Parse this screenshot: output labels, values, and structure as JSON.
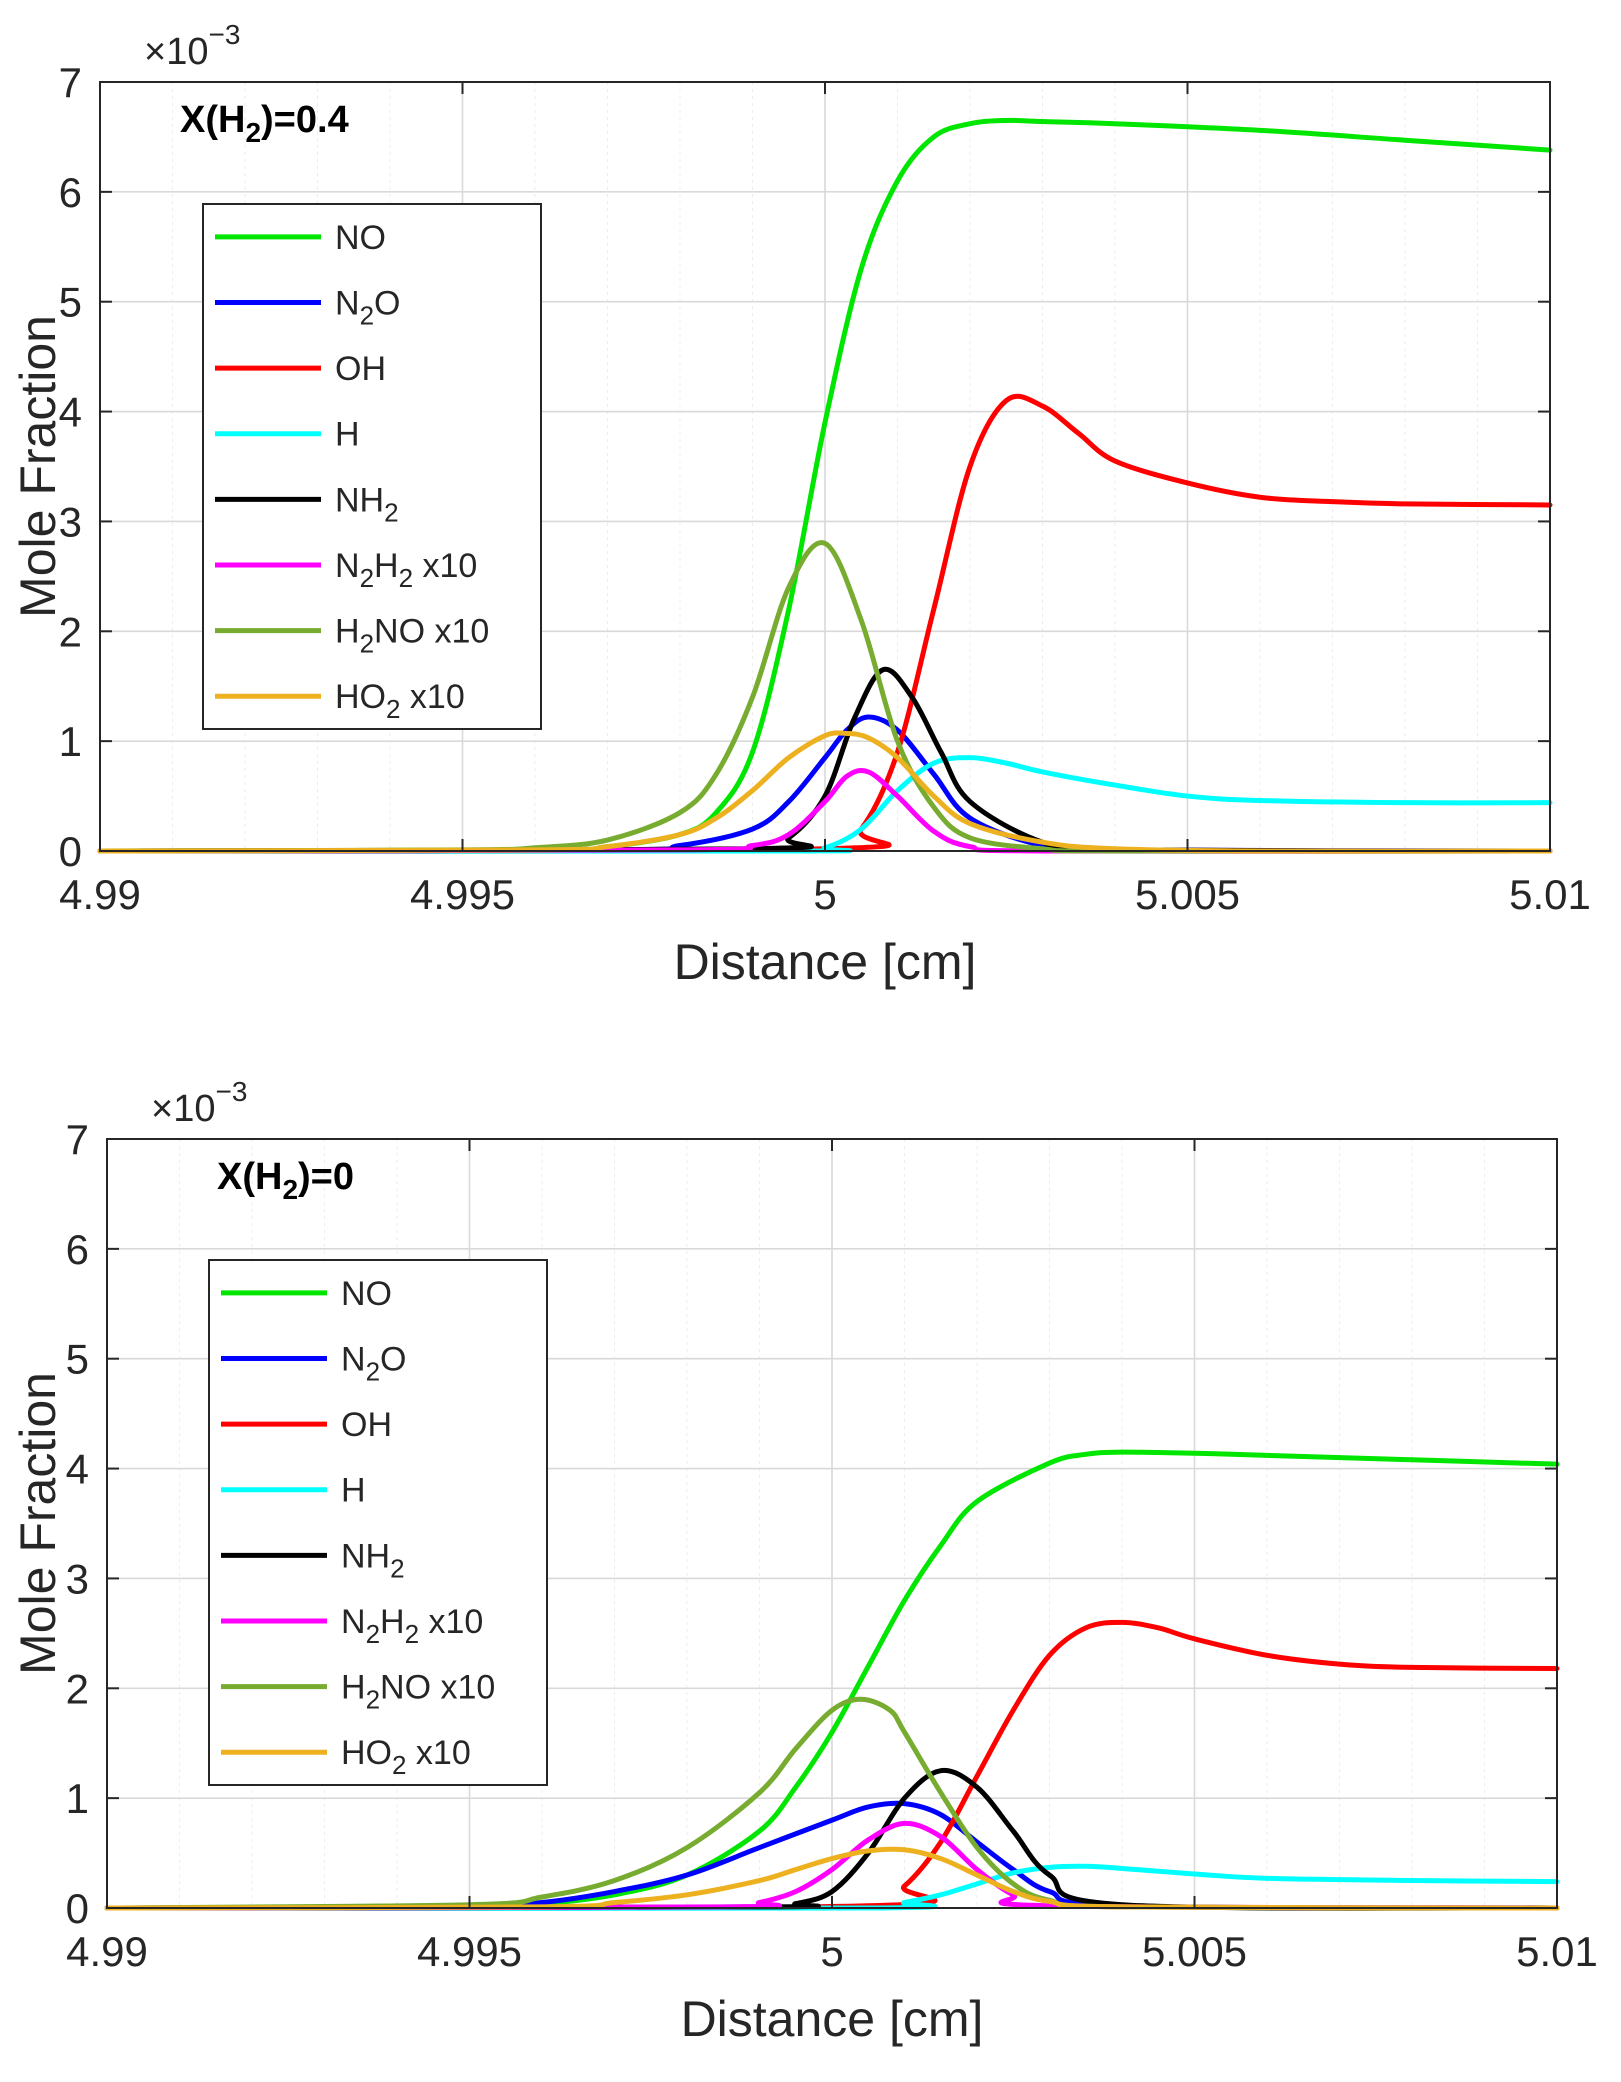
{
  "chart_data": [
    {
      "type": "line",
      "annotation": {
        "base": "X(H",
        "sub": "2",
        "tail": ")=0.4"
      },
      "xlabel": "Distance [cm]",
      "ylabel": "Mole Fraction",
      "xlim": [
        4.99,
        5.01
      ],
      "ylim": [
        0,
        7
      ],
      "xticks": [
        "4.99",
        "4.995",
        "5",
        "5.005",
        "5.01"
      ],
      "yticks": [
        "0",
        "1",
        "2",
        "3",
        "4",
        "5",
        "6",
        "7"
      ],
      "y_multiplier": {
        "base": "×10",
        "exp": "−3"
      },
      "grid": true,
      "legend_position": "upper-left",
      "series": [
        {
          "name": "NO",
          "label": {
            "parts": [
              [
                "NO",
                ""
              ]
            ]
          },
          "color": "#00e600",
          "x": [
            4.99,
            4.996,
            4.997,
            4.998,
            4.9985,
            4.999,
            4.9995,
            5.0,
            5.0005,
            5.001,
            5.0015,
            5.002,
            5.0025,
            5.003,
            5.004,
            5.006,
            5.008,
            5.01
          ],
          "y": [
            0,
            0.01,
            0.04,
            0.15,
            0.35,
            0.9,
            2.2,
            3.9,
            5.3,
            6.1,
            6.5,
            6.62,
            6.65,
            6.64,
            6.62,
            6.56,
            6.47,
            6.38
          ]
        },
        {
          "name": "N2O",
          "label": {
            "parts": [
              [
                "N",
                ""
              ],
              [
                "2",
                "sub"
              ],
              [
                "O",
                ""
              ]
            ]
          },
          "color": "#0000ff",
          "x": [
            4.99,
            4.997,
            4.998,
            4.999,
            4.9995,
            5.0,
            5.0003,
            5.0006,
            5.001,
            5.0015,
            5.002,
            5.003,
            5.004,
            5.01
          ],
          "y": [
            0,
            0.01,
            0.05,
            0.2,
            0.45,
            0.85,
            1.1,
            1.22,
            1.1,
            0.7,
            0.3,
            0.05,
            0.01,
            0
          ]
        },
        {
          "name": "OH",
          "label": {
            "parts": [
              [
                "OH",
                ""
              ]
            ]
          },
          "color": "#ff0000",
          "x": [
            4.99,
            5.0,
            5.0005,
            5.001,
            5.0015,
            5.002,
            5.0025,
            5.003,
            5.0035,
            5.004,
            5.005,
            5.006,
            5.007,
            5.008,
            5.01
          ],
          "y": [
            0,
            0.02,
            0.2,
            0.9,
            2.2,
            3.5,
            4.1,
            4.05,
            3.8,
            3.55,
            3.35,
            3.22,
            3.18,
            3.16,
            3.15
          ]
        },
        {
          "name": "H",
          "label": {
            "parts": [
              [
                "H",
                ""
              ]
            ]
          },
          "color": "#00ffff",
          "x": [
            4.99,
            4.9995,
            5.0,
            5.0005,
            5.001,
            5.0015,
            5.002,
            5.0025,
            5.003,
            5.004,
            5.005,
            5.006,
            5.008,
            5.01
          ],
          "y": [
            0,
            0.0,
            0.03,
            0.2,
            0.55,
            0.8,
            0.85,
            0.8,
            0.72,
            0.6,
            0.5,
            0.46,
            0.44,
            0.44
          ]
        },
        {
          "name": "NH2",
          "label": {
            "parts": [
              [
                "NH",
                ""
              ],
              [
                "2",
                "sub"
              ]
            ]
          },
          "color": "#000000",
          "x": [
            4.99,
            4.999,
            4.9995,
            5.0,
            5.0004,
            5.0008,
            5.0012,
            5.0016,
            5.002,
            5.003,
            5.004,
            5.01
          ],
          "y": [
            0,
            0.02,
            0.12,
            0.5,
            1.2,
            1.65,
            1.4,
            0.9,
            0.45,
            0.08,
            0.01,
            0
          ]
        },
        {
          "name": "N2H2 x10",
          "label": {
            "parts": [
              [
                "N",
                ""
              ],
              [
                "2",
                "sub"
              ],
              [
                "H",
                ""
              ],
              [
                "2",
                "sub"
              ],
              [
                " x10",
                ""
              ]
            ]
          },
          "color": "#ff00ff",
          "x": [
            4.99,
            4.998,
            4.999,
            4.9995,
            5.0,
            5.0003,
            5.0006,
            5.001,
            5.0015,
            5.002,
            5.003,
            5.01
          ],
          "y": [
            0,
            0.01,
            0.05,
            0.15,
            0.45,
            0.68,
            0.72,
            0.5,
            0.18,
            0.04,
            0.0,
            0
          ]
        },
        {
          "name": "H2NO x10",
          "label": {
            "parts": [
              [
                "H",
                ""
              ],
              [
                "2",
                "sub"
              ],
              [
                "NO x10",
                ""
              ]
            ]
          },
          "color": "#77ac30",
          "x": [
            4.99,
            4.995,
            4.996,
            4.997,
            4.998,
            4.9985,
            4.999,
            4.9995,
            5.0,
            5.0005,
            5.001,
            5.0015,
            5.002,
            5.003,
            5.004,
            5.01
          ],
          "y": [
            0,
            0.01,
            0.03,
            0.1,
            0.35,
            0.7,
            1.4,
            2.4,
            2.8,
            2.1,
            1.0,
            0.4,
            0.12,
            0.02,
            0.0,
            0
          ]
        },
        {
          "name": "HO2 x10",
          "label": {
            "parts": [
              [
                "HO",
                ""
              ],
              [
                "2",
                "sub"
              ],
              [
                " x10",
                ""
              ]
            ]
          },
          "color": "#edb120",
          "x": [
            4.99,
            4.996,
            4.997,
            4.998,
            4.9985,
            4.999,
            4.9995,
            5.0,
            5.0003,
            5.0006,
            5.001,
            5.0015,
            5.002,
            5.003,
            5.004,
            5.006,
            5.01
          ],
          "y": [
            0,
            0.01,
            0.04,
            0.15,
            0.3,
            0.55,
            0.85,
            1.05,
            1.07,
            1.03,
            0.85,
            0.5,
            0.25,
            0.08,
            0.02,
            0.0,
            0
          ]
        }
      ]
    },
    {
      "type": "line",
      "annotation": {
        "base": "X(H",
        "sub": "2",
        "tail": ")=0"
      },
      "xlabel": "Distance [cm]",
      "ylabel": "Mole Fraction",
      "xlim": [
        4.99,
        5.01
      ],
      "ylim": [
        0,
        7
      ],
      "xticks": [
        "4.99",
        "4.995",
        "5",
        "5.005",
        "5.01"
      ],
      "yticks": [
        "0",
        "1",
        "2",
        "3",
        "4",
        "5",
        "6",
        "7"
      ],
      "y_multiplier": {
        "base": "×10",
        "exp": "−3"
      },
      "grid": true,
      "legend_position": "upper-left",
      "series": [
        {
          "name": "NO",
          "label": {
            "parts": [
              [
                "NO",
                ""
              ]
            ]
          },
          "color": "#00e600",
          "x": [
            4.99,
            4.995,
            4.996,
            4.997,
            4.998,
            4.999,
            4.9995,
            5.0,
            5.0005,
            5.001,
            5.0015,
            5.002,
            5.003,
            5.0035,
            5.004,
            5.005,
            5.006,
            5.008,
            5.01
          ],
          "y": [
            0,
            0.01,
            0.04,
            0.12,
            0.3,
            0.7,
            1.1,
            1.6,
            2.2,
            2.8,
            3.3,
            3.7,
            4.05,
            4.13,
            4.15,
            4.14,
            4.12,
            4.08,
            4.04
          ]
        },
        {
          "name": "N2O",
          "label": {
            "parts": [
              [
                "N",
                ""
              ],
              [
                "2",
                "sub"
              ],
              [
                "O",
                ""
              ]
            ]
          },
          "color": "#0000ff",
          "x": [
            4.99,
            4.995,
            4.996,
            4.997,
            4.998,
            4.999,
            5.0,
            5.0005,
            5.001,
            5.0015,
            5.002,
            5.0025,
            5.003,
            5.004,
            5.01
          ],
          "y": [
            0,
            0.01,
            0.05,
            0.15,
            0.3,
            0.55,
            0.8,
            0.92,
            0.95,
            0.85,
            0.6,
            0.35,
            0.15,
            0.02,
            0
          ]
        },
        {
          "name": "OH",
          "label": {
            "parts": [
              [
                "OH",
                ""
              ]
            ]
          },
          "color": "#ff0000",
          "x": [
            4.99,
            5.0005,
            5.001,
            5.0015,
            5.002,
            5.0025,
            5.003,
            5.0035,
            5.004,
            5.0045,
            5.005,
            5.006,
            5.007,
            5.008,
            5.01
          ],
          "y": [
            0,
            0.02,
            0.2,
            0.6,
            1.2,
            1.8,
            2.3,
            2.55,
            2.6,
            2.55,
            2.45,
            2.3,
            2.22,
            2.19,
            2.18
          ]
        },
        {
          "name": "H",
          "label": {
            "parts": [
              [
                "H",
                ""
              ]
            ]
          },
          "color": "#00ffff",
          "x": [
            4.99,
            5.0005,
            5.001,
            5.0015,
            5.002,
            5.0025,
            5.003,
            5.0035,
            5.004,
            5.005,
            5.006,
            5.008,
            5.01
          ],
          "y": [
            0,
            0.0,
            0.05,
            0.12,
            0.22,
            0.32,
            0.37,
            0.38,
            0.36,
            0.31,
            0.27,
            0.25,
            0.24
          ]
        },
        {
          "name": "NH2",
          "label": {
            "parts": [
              [
                "NH",
                ""
              ],
              [
                "2",
                "sub"
              ]
            ]
          },
          "color": "#000000",
          "x": [
            4.99,
            4.999,
            4.9995,
            5.0,
            5.0005,
            5.001,
            5.0015,
            5.002,
            5.0025,
            5.003,
            5.004,
            5.01
          ],
          "y": [
            0,
            0.01,
            0.04,
            0.15,
            0.5,
            1.0,
            1.25,
            1.1,
            0.7,
            0.3,
            0.03,
            0
          ]
        },
        {
          "name": "N2H2 x10",
          "label": {
            "parts": [
              [
                "N",
                ""
              ],
              [
                "2",
                "sub"
              ],
              [
                "H",
                ""
              ],
              [
                "2",
                "sub"
              ],
              [
                " x10",
                ""
              ]
            ]
          },
          "color": "#ff00ff",
          "x": [
            4.99,
            4.9985,
            4.999,
            4.9995,
            5.0,
            5.0005,
            5.001,
            5.0015,
            5.002,
            5.0025,
            5.003,
            5.01
          ],
          "y": [
            0,
            0.01,
            0.05,
            0.15,
            0.35,
            0.62,
            0.77,
            0.65,
            0.35,
            0.12,
            0.02,
            0
          ]
        },
        {
          "name": "H2NO x10",
          "label": {
            "parts": [
              [
                "H",
                ""
              ],
              [
                "2",
                "sub"
              ],
              [
                "NO x10",
                ""
              ]
            ]
          },
          "color": "#77ac30",
          "x": [
            4.99,
            4.995,
            4.996,
            4.997,
            4.998,
            4.999,
            4.9995,
            5.0,
            5.0004,
            5.0008,
            5.001,
            5.0015,
            5.002,
            5.0025,
            5.003,
            5.004,
            5.01
          ],
          "y": [
            0,
            0.03,
            0.1,
            0.25,
            0.55,
            1.05,
            1.45,
            1.8,
            1.9,
            1.8,
            1.6,
            1.05,
            0.55,
            0.22,
            0.07,
            0.01,
            0
          ]
        },
        {
          "name": "HO2 x10",
          "label": {
            "parts": [
              [
                "HO",
                ""
              ],
              [
                "2",
                "sub"
              ],
              [
                " x10",
                ""
              ]
            ]
          },
          "color": "#edb120",
          "x": [
            4.99,
            4.996,
            4.997,
            4.998,
            4.999,
            4.9995,
            5.0,
            5.0005,
            5.001,
            5.0015,
            5.002,
            5.0025,
            5.003,
            5.004,
            5.01
          ],
          "y": [
            0,
            0.01,
            0.05,
            0.12,
            0.25,
            0.35,
            0.45,
            0.52,
            0.53,
            0.45,
            0.3,
            0.15,
            0.06,
            0.01,
            0
          ]
        }
      ]
    }
  ]
}
